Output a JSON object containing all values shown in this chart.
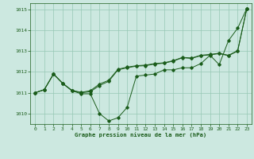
{
  "xlabel": "Graphe pression niveau de la mer (hPa)",
  "ylim": [
    1009.5,
    1015.3
  ],
  "xlim": [
    -0.5,
    23.5
  ],
  "yticks": [
    1010,
    1011,
    1012,
    1013,
    1014,
    1015
  ],
  "xticks": [
    0,
    1,
    2,
    3,
    4,
    5,
    6,
    7,
    8,
    9,
    10,
    11,
    12,
    13,
    14,
    15,
    16,
    17,
    18,
    19,
    20,
    21,
    22,
    23
  ],
  "bg_color": "#cce8e0",
  "line_color": "#1a5c1a",
  "grid_color": "#96c8b4",
  "line1_y": [
    1011.0,
    1011.15,
    1011.9,
    1011.45,
    1011.1,
    1010.95,
    1010.95,
    1010.0,
    1009.65,
    1009.8,
    1010.3,
    1011.8,
    1011.85,
    1011.9,
    1012.1,
    1012.1,
    1012.2,
    1012.2,
    1012.4,
    1012.8,
    1012.35,
    1013.5,
    1014.1,
    1015.05
  ],
  "line2_y": [
    1011.0,
    1011.15,
    1011.9,
    1011.45,
    1011.1,
    1011.0,
    1011.05,
    1011.35,
    1011.55,
    1012.1,
    1012.2,
    1012.28,
    1012.3,
    1012.38,
    1012.42,
    1012.52,
    1012.68,
    1012.65,
    1012.78,
    1012.82,
    1012.88,
    1012.78,
    1013.0,
    1015.05
  ],
  "line3_y": [
    1011.0,
    1011.15,
    1011.9,
    1011.45,
    1011.12,
    1011.02,
    1011.1,
    1011.42,
    1011.6,
    1012.13,
    1012.23,
    1012.3,
    1012.33,
    1012.4,
    1012.44,
    1012.54,
    1012.7,
    1012.67,
    1012.8,
    1012.84,
    1012.9,
    1012.8,
    1013.02,
    1015.05
  ]
}
